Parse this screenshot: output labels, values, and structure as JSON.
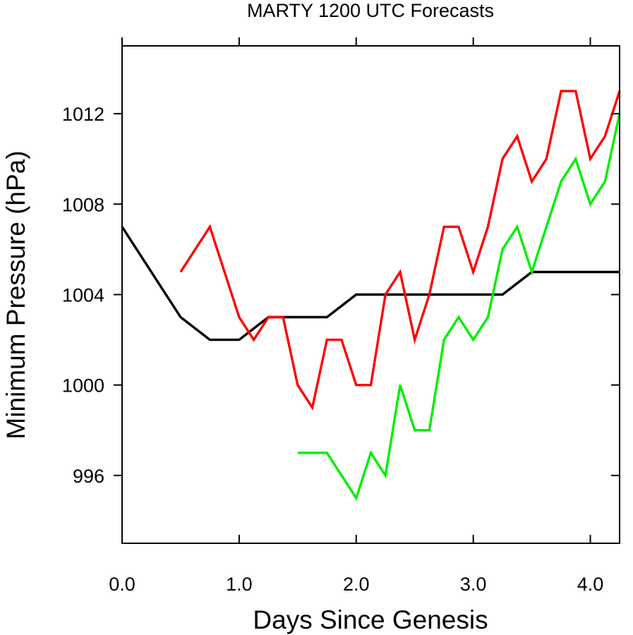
{
  "chart_data": {
    "type": "line",
    "title": "MARTY 1200 UTC Forecasts",
    "xlabel": "Days Since Genesis",
    "ylabel": "Minimum Pressure (hPa)",
    "xlim": [
      0,
      4.25
    ],
    "ylim": [
      993,
      1015
    ],
    "xticks": [
      0,
      1,
      2,
      3,
      4
    ],
    "xtick_labels": [
      "0.0",
      "1.0",
      "2.0",
      "3.0",
      "4.0"
    ],
    "yticks": [
      996,
      1000,
      1004,
      1008,
      1012
    ],
    "ytick_labels": [
      "996",
      "1000",
      "1004",
      "1008",
      "1012"
    ],
    "grid": false,
    "legend": "none",
    "series": [
      {
        "color": "#000000",
        "x": [
          0,
          0.5,
          0.75,
          1.0,
          1.25,
          1.5,
          1.75,
          2.0,
          2.25,
          2.5,
          2.75,
          3.0,
          3.25,
          3.5,
          3.75,
          4.0,
          4.25
        ],
        "y": [
          1007,
          1003,
          1002,
          1002,
          1003,
          1003,
          1003,
          1004,
          1004,
          1004,
          1004,
          1004,
          1004,
          1005,
          1005,
          1005,
          1005
        ]
      },
      {
        "color": "#ff0000",
        "x": [
          0.5,
          0.75,
          1.0,
          1.125,
          1.25,
          1.375,
          1.5,
          1.625,
          1.75,
          1.875,
          2.0,
          2.125,
          2.25,
          2.375,
          2.5,
          2.625,
          2.75,
          2.875,
          3.0,
          3.125,
          3.25,
          3.375,
          3.5,
          3.625,
          3.75,
          3.875,
          4.0,
          4.125,
          4.25
        ],
        "y": [
          1005,
          1007,
          1003,
          1002,
          1003,
          1003,
          1000,
          999,
          1002,
          1002,
          1000,
          1000,
          1004,
          1005,
          1002,
          1004,
          1007,
          1007,
          1005,
          1007,
          1010,
          1011,
          1009,
          1010,
          1013,
          1013,
          1010,
          1011,
          1013
        ]
      },
      {
        "color": "#00ee00",
        "x": [
          1.5,
          1.75,
          2.0,
          2.125,
          2.25,
          2.375,
          2.5,
          2.625,
          2.75,
          2.875,
          3.0,
          3.125,
          3.25,
          3.375,
          3.5,
          3.625,
          3.75,
          3.875,
          4.0,
          4.125,
          4.25
        ],
        "y": [
          997,
          997,
          995,
          997,
          996,
          1000,
          998,
          998,
          1002,
          1003,
          1002,
          1003,
          1006,
          1007,
          1005,
          1007,
          1009,
          1010,
          1008,
          1009,
          1012
        ]
      }
    ]
  }
}
